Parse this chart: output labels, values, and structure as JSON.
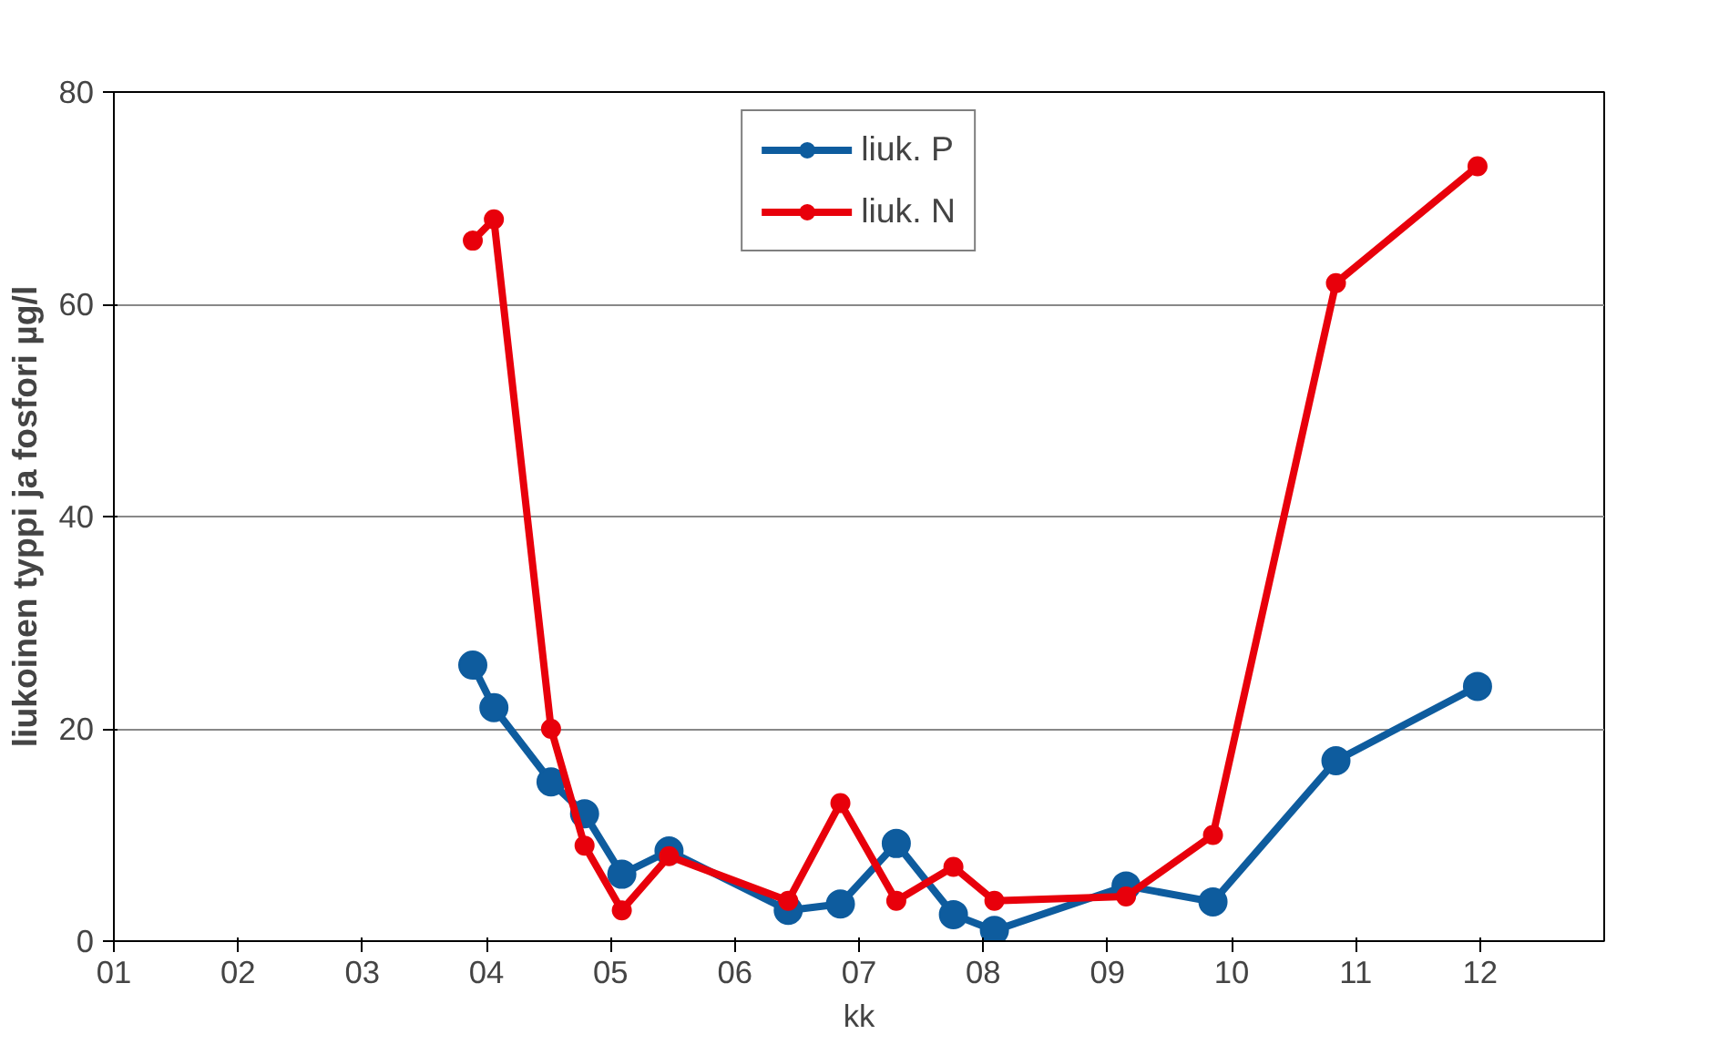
{
  "chart_data": {
    "type": "line",
    "xlabel": "kk",
    "ylabel": "liukoinen typpi ja fosfori µg/l",
    "xlim": [
      1,
      13
    ],
    "xticks": [
      {
        "value": 1,
        "label": "01"
      },
      {
        "value": 2,
        "label": "02"
      },
      {
        "value": 3,
        "label": "03"
      },
      {
        "value": 4,
        "label": "04"
      },
      {
        "value": 5,
        "label": "05"
      },
      {
        "value": 6,
        "label": "06"
      },
      {
        "value": 7,
        "label": "07"
      },
      {
        "value": 8,
        "label": "08"
      },
      {
        "value": 9,
        "label": "09"
      },
      {
        "value": 10,
        "label": "10"
      },
      {
        "value": 11,
        "label": "11"
      },
      {
        "value": 12,
        "label": "12"
      }
    ],
    "ylim": [
      0,
      80
    ],
    "yticks": [
      0,
      20,
      40,
      60,
      80
    ],
    "grid": "y",
    "legend": "top",
    "marker": "circle",
    "line_style": "solid",
    "x": [
      3.89,
      4.06,
      4.52,
      4.79,
      5.09,
      5.47,
      6.43,
      6.85,
      7.3,
      7.76,
      8.09,
      9.15,
      9.85,
      10.84,
      11.98
    ],
    "series": [
      {
        "name": "liuk. P",
        "color": "#0e5c9e",
        "values": [
          26,
          22,
          15,
          12,
          6.3,
          8.5,
          2.9,
          3.5,
          9.2,
          2.5,
          1,
          5.2,
          3.7,
          17,
          24
        ]
      },
      {
        "name": "liuk. N",
        "color": "#e8000b",
        "values": [
          66,
          68,
          20,
          9,
          2.9,
          8,
          3.8,
          13,
          3.8,
          7,
          3.8,
          4.2,
          10,
          62,
          73
        ]
      }
    ]
  }
}
